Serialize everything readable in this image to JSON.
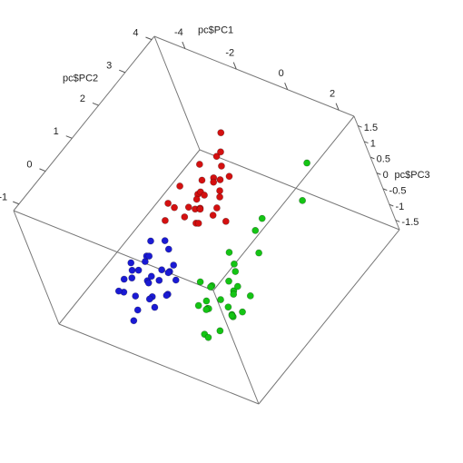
{
  "chart_data": {
    "type": "scatter3d",
    "xlabel": "pc$PC1",
    "ylabel": "pc$PC2",
    "zlabel": "pc$PC3",
    "xlim": [
      -5.2,
      2.6
    ],
    "ylim": [
      -1.2,
      4.1
    ],
    "zlim": [
      -1.8,
      1.8
    ],
    "xticks": [
      -4,
      -2,
      0,
      2
    ],
    "yticks": [
      -1,
      0,
      1,
      2,
      3,
      4
    ],
    "zticks": [
      -1.5,
      -1,
      -0.5,
      0,
      0.5,
      1,
      1.5
    ],
    "series": [
      {
        "color": "#d41010",
        "x": [
          -1.5,
          -1.2,
          -1.8,
          -0.9,
          -2.1,
          -1.4,
          -1.0,
          -1.6,
          -2.4,
          -0.6,
          -1.3,
          -1.9,
          -1.1,
          -0.8,
          -1.7,
          -2.0,
          -1.5,
          -1.2,
          -0.5,
          -2.2,
          -1.4,
          -1.0,
          -1.8,
          -1.6,
          -0.7,
          -1.3,
          -2.5,
          -1.1,
          -0.9,
          -1.5
        ],
        "y": [
          1.6,
          2.0,
          1.4,
          1.8,
          1.2,
          2.4,
          1.5,
          1.9,
          1.0,
          1.7,
          2.2,
          1.6,
          1.3,
          2.1,
          1.8,
          1.5,
          2.6,
          1.1,
          1.4,
          1.9,
          1.7,
          2.3,
          1.2,
          2.0,
          1.6,
          1.4,
          1.3,
          1.9,
          1.0,
          2.8
        ],
        "z": [
          0.6,
          0.8,
          0.3,
          0.5,
          0.4,
          1.0,
          0.2,
          0.7,
          0.1,
          0.9,
          0.5,
          0.0,
          0.6,
          1.2,
          0.4,
          0.8,
          0.9,
          0.3,
          0.7,
          -0.1,
          0.5,
          0.6,
          0.2,
          1.1,
          0.0,
          0.4,
          0.3,
          0.8,
          0.5,
          1.3
        ]
      },
      {
        "color": "#1a1ad4",
        "x": [
          -2.5,
          -2.8,
          -2.2,
          -3.0,
          -2.6,
          -2.0,
          -2.4,
          -3.2,
          -2.7,
          -1.9,
          -2.3,
          -2.9,
          -2.1,
          -2.6,
          -3.1,
          -2.4,
          -1.8,
          -2.7,
          -2.2,
          -2.5,
          -3.3,
          -2.0,
          -2.8,
          -2.3,
          -2.6,
          -1.7,
          -2.9,
          -2.4,
          -2.1,
          -3.0
        ],
        "y": [
          0.0,
          0.3,
          -0.2,
          0.5,
          -0.4,
          0.2,
          0.6,
          0.1,
          -0.6,
          0.4,
          -0.1,
          0.7,
          -0.3,
          0.2,
          -0.5,
          0.8,
          0.0,
          0.4,
          -0.7,
          0.3,
          0.2,
          -0.4,
          -0.2,
          0.5,
          0.9,
          -0.1,
          0.1,
          -0.8,
          0.6,
          -0.3
        ],
        "z": [
          -0.8,
          -0.6,
          -1.0,
          -0.7,
          -0.9,
          -0.5,
          -1.1,
          -0.8,
          -0.6,
          -1.0,
          -0.7,
          -0.4,
          -1.2,
          -0.9,
          -0.8,
          -0.6,
          -1.0,
          -0.5,
          -0.9,
          -1.1,
          -0.7,
          -0.8,
          -0.6,
          -1.0,
          -0.5,
          -0.9,
          -0.7,
          -1.2,
          -0.8,
          -0.6
        ]
      },
      {
        "color": "#14c414",
        "x": [
          0.0,
          0.4,
          -0.4,
          0.8,
          -0.7,
          0.2,
          0.6,
          -0.2,
          1.0,
          -0.5,
          0.3,
          -0.1,
          0.7,
          -0.6,
          0.5,
          0.1,
          -0.3,
          0.9,
          0.2,
          -0.8,
          0.4,
          0.0,
          0.6,
          -0.4,
          1.2,
          0.5,
          1.4,
          0.3,
          0.8,
          -0.2
        ],
        "y": [
          0.3,
          0.5,
          0.1,
          0.0,
          0.6,
          -0.2,
          0.4,
          0.8,
          -0.1,
          0.2,
          0.7,
          -0.4,
          0.3,
          0.5,
          -0.3,
          0.9,
          0.0,
          0.6,
          -0.5,
          0.4,
          0.2,
          1.0,
          0.1,
          -0.1,
          3.2,
          1.6,
          2.6,
          2.0,
          1.3,
          1.1
        ],
        "z": [
          -0.9,
          -0.7,
          -1.1,
          -0.8,
          -1.0,
          -0.6,
          -1.2,
          -0.9,
          -0.7,
          -1.0,
          -0.8,
          -1.3,
          -0.5,
          -0.9,
          -1.1,
          -0.6,
          -1.0,
          -0.8,
          -1.2,
          -0.7,
          -0.9,
          -0.5,
          -1.0,
          -0.8,
          0.8,
          0.1,
          0.3,
          0.0,
          -0.2,
          -0.3
        ]
      }
    ]
  }
}
